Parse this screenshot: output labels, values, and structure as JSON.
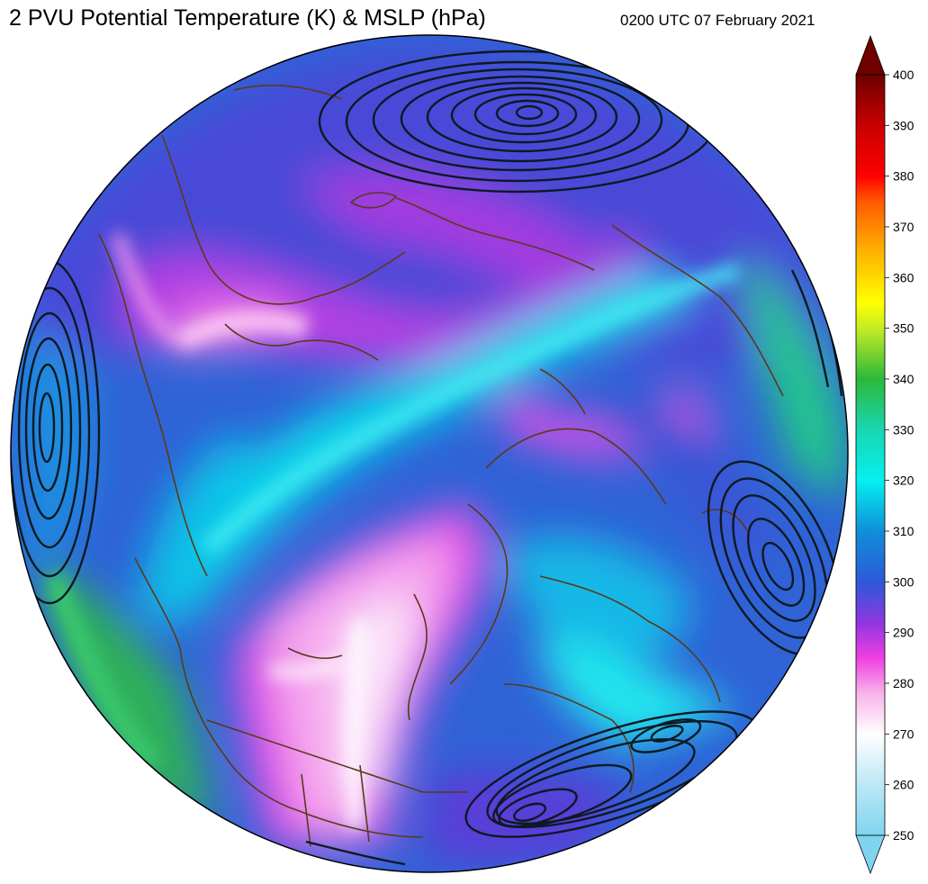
{
  "header": {
    "title": "2 PVU Potential Temperature (K) & MSLP (hPa)",
    "timestamp": "0200 UTC 07 February 2021"
  },
  "colorbar": {
    "min": 250,
    "max": 400,
    "ticks": [
      250,
      260,
      270,
      280,
      290,
      300,
      310,
      320,
      330,
      340,
      350,
      360,
      370,
      380,
      390,
      400
    ],
    "stops": [
      {
        "value": 250,
        "color": "#7fd4f0"
      },
      {
        "value": 262,
        "color": "#c9ecf7"
      },
      {
        "value": 270,
        "color": "#ffffff"
      },
      {
        "value": 278,
        "color": "#f7b3ea"
      },
      {
        "value": 285,
        "color": "#ef3fe0"
      },
      {
        "value": 292,
        "color": "#8f36e0"
      },
      {
        "value": 300,
        "color": "#2c5ad8"
      },
      {
        "value": 310,
        "color": "#0f8fd8"
      },
      {
        "value": 320,
        "color": "#05f0f0"
      },
      {
        "value": 330,
        "color": "#19d6b0"
      },
      {
        "value": 340,
        "color": "#2cb83a"
      },
      {
        "value": 350,
        "color": "#c5ec25"
      },
      {
        "value": 355,
        "color": "#ffff00"
      },
      {
        "value": 365,
        "color": "#ffb300"
      },
      {
        "value": 375,
        "color": "#ff5a00"
      },
      {
        "value": 380,
        "color": "#ff0000"
      },
      {
        "value": 390,
        "color": "#c80000"
      },
      {
        "value": 400,
        "color": "#6e0000"
      }
    ]
  },
  "map": {
    "coastline_color": "#5a3a1a",
    "contour_color": "#0d1a22"
  }
}
